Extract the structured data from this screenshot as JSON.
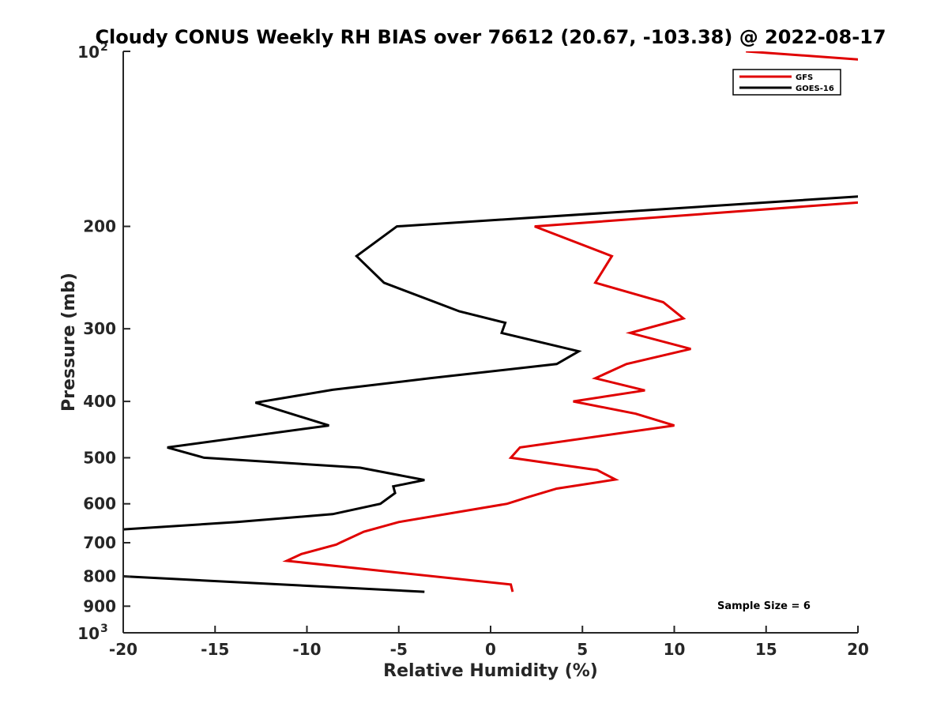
{
  "chart_data": {
    "type": "line",
    "title": "Cloudy CONUS Weekly RH BIAS over 76612 (20.67, -103.38) @ 2022-08-17",
    "xlabel": "Relative Humidity (%)",
    "ylabel": "Pressure (mb)",
    "xlim": [
      -20,
      20
    ],
    "ylim": [
      100,
      1000
    ],
    "yscale": "log",
    "y_reversed": true,
    "grid": false,
    "legend_position": "top-right",
    "x_ticks": [
      -20,
      -15,
      -10,
      -5,
      0,
      5,
      10,
      15,
      20
    ],
    "x_tick_labels": [
      "-20",
      "-15",
      "-10",
      "-5",
      "0",
      "5",
      "10",
      "15",
      "20"
    ],
    "y_ticks": [
      {
        "value": 100,
        "base": "10",
        "exp": "2"
      },
      {
        "value": 200,
        "label": "200"
      },
      {
        "value": 300,
        "label": "300"
      },
      {
        "value": 400,
        "label": "400"
      },
      {
        "value": 500,
        "label": "500"
      },
      {
        "value": 600,
        "label": "600"
      },
      {
        "value": 700,
        "label": "700"
      },
      {
        "value": 800,
        "label": "800"
      },
      {
        "value": 900,
        "label": "900"
      },
      {
        "value": 1000,
        "base": "10",
        "exp": "3"
      }
    ],
    "annotation": "Sample Size = 6",
    "series": [
      {
        "name": "GFS",
        "color": "#e00000",
        "segments": [
          [
            [
              13.9,
              100
            ],
            [
              25,
              106
            ]
          ],
          [
            [
              22,
              180
            ],
            [
              2.4,
              200
            ],
            [
              6.6,
              225
            ],
            [
              5.7,
              250
            ],
            [
              9.4,
              270
            ],
            [
              10.5,
              288
            ],
            [
              7.6,
              305
            ],
            [
              10.9,
              325
            ],
            [
              7.4,
              345
            ],
            [
              5.7,
              365
            ],
            [
              8.4,
              383
            ],
            [
              4.5,
              400
            ],
            [
              7.9,
              420
            ],
            [
              10.0,
              440
            ],
            [
              1.6,
              480
            ],
            [
              1.1,
              500
            ],
            [
              5.8,
              525
            ],
            [
              6.8,
              545
            ],
            [
              3.6,
              565
            ],
            [
              2.0,
              585
            ],
            [
              0.9,
              600
            ],
            [
              -5.0,
              645
            ],
            [
              -6.9,
              670
            ],
            [
              -8.2,
              700
            ],
            [
              -8.4,
              705
            ],
            [
              -10.3,
              732
            ],
            [
              -11.1,
              752
            ],
            [
              1.1,
              826
            ],
            [
              1.2,
              850
            ]
          ]
        ]
      },
      {
        "name": "GOES-16",
        "color": "#000000",
        "segments": [
          [
            [
              22,
              176
            ],
            [
              -5.1,
              200
            ],
            [
              -7.3,
              225
            ],
            [
              -5.8,
              250
            ],
            [
              -1.7,
              280
            ],
            [
              0.8,
              293
            ],
            [
              0.6,
              305
            ],
            [
              4.8,
              328
            ],
            [
              3.6,
              345
            ],
            [
              -3.3,
              365
            ],
            [
              -8.6,
              382
            ],
            [
              -12.8,
              402
            ],
            [
              -8.8,
              440
            ],
            [
              -17.6,
              480
            ],
            [
              -15.6,
              500
            ],
            [
              -7.1,
              520
            ],
            [
              -3.6,
              546
            ],
            [
              -5.3,
              560
            ],
            [
              -5.2,
              575
            ],
            [
              -6.0,
              600
            ],
            [
              -8.6,
              625
            ],
            [
              -13.8,
              645
            ],
            [
              -25,
              680
            ]
          ],
          [
            [
              -25,
              785
            ],
            [
              -3.6,
              850
            ]
          ]
        ]
      }
    ]
  }
}
